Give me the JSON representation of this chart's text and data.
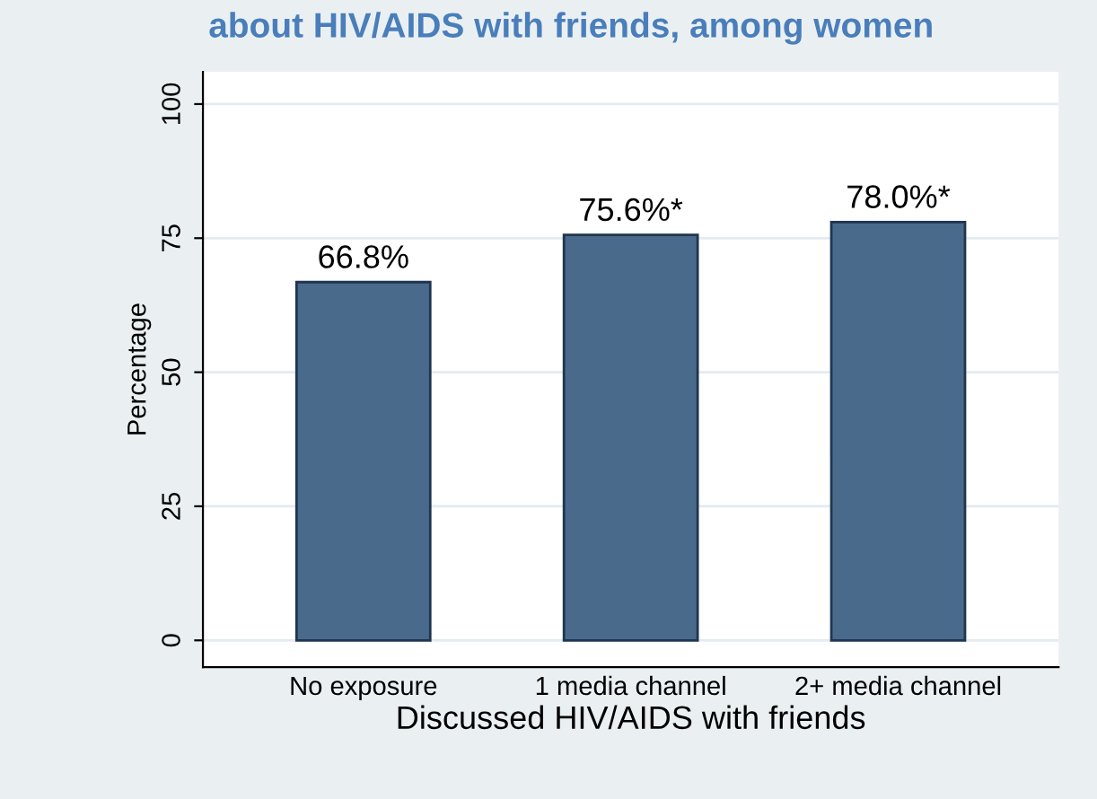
{
  "chart_data": {
    "type": "bar",
    "title": "about HIV/AIDS with friends, among women",
    "xlabel": "Discussed HIV/AIDS with friends",
    "ylabel": "Percentage",
    "categories": [
      "No exposure",
      "1 media channel",
      "2+ media channel"
    ],
    "values": [
      66.8,
      75.6,
      78.0
    ],
    "value_labels": [
      "66.8%",
      "75.6%*",
      "78.0%*"
    ],
    "color": "#4a6a8c",
    "ylim": [
      -5,
      106
    ],
    "yticks": [
      0,
      25,
      50,
      75,
      100
    ],
    "grid": "y",
    "legend": false
  }
}
